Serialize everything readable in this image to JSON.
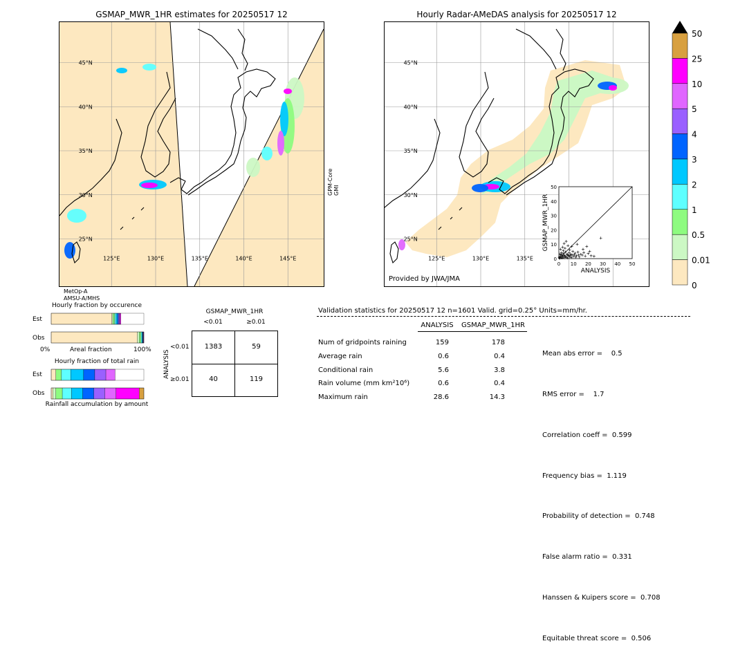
{
  "colors": {
    "scale": [
      "#fde8c0",
      "#ccf8c4",
      "#8efb80",
      "#5effff",
      "#00c8ff",
      "#0064ff",
      "#9a60ff",
      "#e066ff",
      "#ff00ff",
      "#d8a040"
    ],
    "land": "#000000",
    "grid": "#999999",
    "swath": "#fde8c0"
  },
  "left_map": {
    "title": "GSMAP_MWR_1HR estimates for 20250517 12",
    "lat_labels": [
      "45°N",
      "40°N",
      "35°N",
      "30°N",
      "25°N"
    ],
    "lon_labels": [
      "125°E",
      "130°E",
      "135°E",
      "140°E",
      "145°E"
    ],
    "sat_right": [
      "GPM-Core",
      "GMI"
    ],
    "sat_bottom": [
      "MetOp-A",
      "AMSU-A/MHS"
    ]
  },
  "right_map": {
    "title": "Hourly Radar-AMeDAS analysis for 20250517 12",
    "lat_labels": [
      "45°N",
      "40°N",
      "35°N",
      "30°N",
      "25°N"
    ],
    "lon_labels": [
      "125°E",
      "130°E",
      "135°E"
    ],
    "credit": "Provided by JWA/JMA"
  },
  "colorbar": {
    "labels": [
      "50",
      "25",
      "10",
      "5",
      "4",
      "3",
      "2",
      "1",
      "0.5",
      "0.01",
      "0"
    ]
  },
  "chart_data": [
    {
      "type": "scatter",
      "xlabel": "ANALYSIS",
      "ylabel": "GSMAP_MWR_1HR",
      "xlim": [
        0,
        50
      ],
      "ylim": [
        0,
        50
      ],
      "xticks": [
        "0",
        "10",
        "20",
        "30",
        "40",
        "50"
      ],
      "yticks": [
        "0",
        "10",
        "20",
        "30",
        "40",
        "50"
      ],
      "points": [
        [
          0.3,
          0.5
        ],
        [
          0.6,
          0.2
        ],
        [
          1.0,
          1.5
        ],
        [
          1.5,
          0.8
        ],
        [
          2.0,
          2.5
        ],
        [
          2.2,
          0.4
        ],
        [
          2.8,
          1.2
        ],
        [
          3.1,
          3.5
        ],
        [
          3.5,
          0.6
        ],
        [
          4.0,
          2.0
        ],
        [
          4.4,
          4.6
        ],
        [
          5.0,
          1.0
        ],
        [
          5.5,
          3.0
        ],
        [
          6.0,
          0.5
        ],
        [
          6.5,
          2.2
        ],
        [
          7.0,
          4.0
        ],
        [
          7.5,
          1.3
        ],
        [
          8.0,
          3.2
        ],
        [
          8.6,
          0.8
        ],
        [
          9.0,
          2.6
        ],
        [
          9.5,
          5.0
        ],
        [
          10.0,
          1.6
        ],
        [
          11.0,
          3.8
        ],
        [
          12.0,
          2.0
        ],
        [
          13.0,
          4.5
        ],
        [
          14.0,
          1.2
        ],
        [
          15.0,
          3.0
        ],
        [
          16.0,
          2.4
        ],
        [
          17.0,
          4.2
        ],
        [
          18.0,
          1.8
        ],
        [
          20.0,
          3.5
        ],
        [
          22.0,
          2.0
        ],
        [
          24.0,
          1.6
        ],
        [
          28.6,
          14.3
        ],
        [
          1.2,
          6.5
        ],
        [
          2.5,
          8.0
        ],
        [
          3.6,
          10.5
        ],
        [
          5.0,
          12.0
        ],
        [
          4.2,
          7.2
        ],
        [
          6.2,
          9.0
        ],
        [
          7.4,
          6.0
        ],
        [
          8.8,
          8.5
        ],
        [
          1.8,
          4.0
        ],
        [
          3.0,
          5.6
        ],
        [
          0.8,
          3.2
        ],
        [
          12.5,
          10.0
        ],
        [
          16.5,
          6.5
        ],
        [
          19.0,
          8.5
        ],
        [
          0.4,
          1.0
        ],
        [
          1.4,
          2.6
        ],
        [
          2.4,
          1.8
        ],
        [
          3.4,
          2.4
        ],
        [
          4.6,
          1.4
        ],
        [
          5.8,
          2.8
        ],
        [
          6.8,
          1.9
        ],
        [
          7.8,
          2.2
        ],
        [
          10.5,
          2.8
        ],
        [
          11.5,
          1.0
        ],
        [
          13.5,
          2.5
        ],
        [
          21.0,
          5.0
        ]
      ]
    },
    {
      "type": "bar",
      "title": "Hourly fraction by occurence",
      "categories": [
        "Est",
        "Obs"
      ],
      "xlabel": "Areal fraction",
      "xticks": [
        "0%",
        "100%"
      ],
      "series": [
        {
          "values": [
            [
              0.655,
              0.01,
              0.02,
              0.015,
              0.015,
              0.01,
              0.01,
              0.01,
              0.007
            ],
            [
              0.93,
              0.02,
              0.02,
              0.01,
              0.007,
              0.005,
              0.004,
              0.004,
              0.0
            ]
          ]
        }
      ]
    },
    {
      "type": "bar",
      "title": "Hourly fraction of total rain",
      "categories": [
        "Est",
        "Obs"
      ],
      "xlabel": "Rainfall accumulation by amount",
      "series": [
        {
          "values": [
            [
              0.05,
              0.0,
              0.06,
              0.1,
              0.14,
              0.12,
              0.12,
              0.1,
              0.0,
              0.0
            ],
            [
              0.02,
              0.03,
              0.07,
              0.1,
              0.12,
              0.12,
              0.12,
              0.12,
              0.25,
              0.05
            ]
          ]
        }
      ]
    },
    {
      "type": "table",
      "title": "GSMAP_MWR_1HR",
      "col_headers": [
        "<0.01",
        "≥0.01"
      ],
      "row_axis": "ANALYSIS",
      "row_headers": [
        "<0.01",
        "≥0.01"
      ],
      "cells": [
        [
          "1383",
          "59"
        ],
        [
          "40",
          "119"
        ]
      ]
    }
  ],
  "validation": {
    "header": "Validation statistics for 20250517 12  n=1601 Valid. grid=0.25° Units=mm/hr.",
    "col_analysis": "ANALYSIS",
    "col_gsmap": "GSMAP_MWR_1HR",
    "rows": [
      {
        "label": "Num of gridpoints raining",
        "a": "159",
        "g": "178"
      },
      {
        "label": "Average rain",
        "a": "0.6",
        "g": "0.4"
      },
      {
        "label": "Conditional rain",
        "a": "5.6",
        "g": "3.8"
      },
      {
        "label": "Rain volume (mm km²10⁶)",
        "a": "0.6",
        "g": "0.4"
      },
      {
        "label": "Maximum rain",
        "a": "28.6",
        "g": "14.3"
      }
    ],
    "scores": [
      "Mean abs error =    0.5",
      "RMS error =    1.7",
      "Correlation coeff =  0.599",
      "Frequency bias =  1.119",
      "Probability of detection =  0.748",
      "False alarm ratio =  0.331",
      "Hanssen & Kuipers score =  0.708",
      "Equitable threat score =  0.506"
    ]
  }
}
